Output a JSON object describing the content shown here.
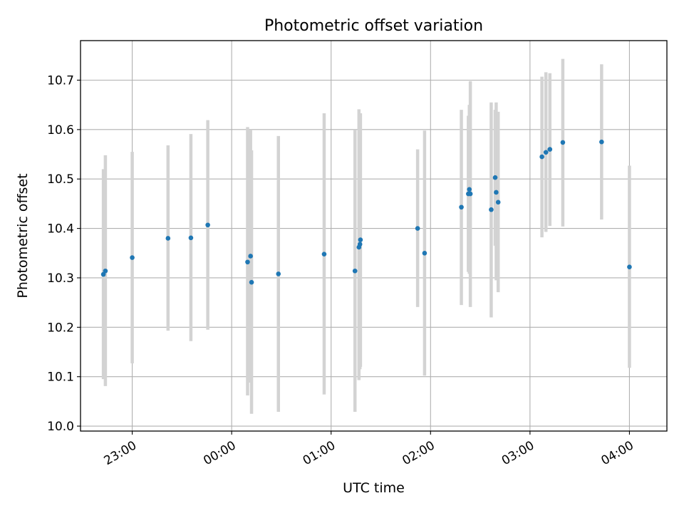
{
  "chart_data": {
    "type": "scatter",
    "title": "Photometric offset variation",
    "xlabel": "UTC time",
    "ylabel": "Photometric offset",
    "x_tick_labels": [
      "23:00",
      "00:00",
      "01:00",
      "02:00",
      "03:00",
      "04:00"
    ],
    "y_tick_labels": [
      "10.0",
      "10.1",
      "10.2",
      "10.3",
      "10.4",
      "10.5",
      "10.6",
      "10.7"
    ],
    "x_ticks_min": [
      1380,
      1440,
      1500,
      1560,
      1620,
      1680
    ],
    "y_ticks": [
      10.0,
      10.1,
      10.2,
      10.3,
      10.4,
      10.5,
      10.6,
      10.7
    ],
    "xlim_min": [
      1348.8,
      1702.6
    ],
    "ylim": [
      9.99,
      10.78
    ],
    "grid": true,
    "point_color": "#1f77b4",
    "errorbar_color": "#d3d3d3",
    "points": [
      {
        "t_min": 1362.6,
        "y": 10.307,
        "lo": 10.095,
        "hi": 10.52
      },
      {
        "t_min": 1363.8,
        "y": 10.314,
        "lo": 10.081,
        "hi": 10.548
      },
      {
        "t_min": 1380.0,
        "y": 10.341,
        "lo": 10.127,
        "hi": 10.555
      },
      {
        "t_min": 1401.6,
        "y": 10.38,
        "lo": 10.193,
        "hi": 10.568
      },
      {
        "t_min": 1415.4,
        "y": 10.381,
        "lo": 10.172,
        "hi": 10.591
      },
      {
        "t_min": 1425.6,
        "y": 10.407,
        "lo": 10.195,
        "hi": 10.619
      },
      {
        "t_min": 1449.6,
        "y": 10.332,
        "lo": 10.062,
        "hi": 10.605
      },
      {
        "t_min": 1451.4,
        "y": 10.344,
        "lo": 10.088,
        "hi": 10.6
      },
      {
        "t_min": 1452.0,
        "y": 10.291,
        "lo": 10.025,
        "hi": 10.558
      },
      {
        "t_min": 1468.2,
        "y": 10.308,
        "lo": 10.029,
        "hi": 10.587
      },
      {
        "t_min": 1495.8,
        "y": 10.348,
        "lo": 10.064,
        "hi": 10.633
      },
      {
        "t_min": 1514.4,
        "y": 10.314,
        "lo": 10.029,
        "hi": 10.6
      },
      {
        "t_min": 1516.8,
        "y": 10.362,
        "lo": 10.093,
        "hi": 10.641
      },
      {
        "t_min": 1517.4,
        "y": 10.368,
        "lo": 10.115,
        "hi": 10.625
      },
      {
        "t_min": 1517.7,
        "y": 10.377,
        "lo": 10.12,
        "hi": 10.633
      },
      {
        "t_min": 1552.2,
        "y": 10.4,
        "lo": 10.241,
        "hi": 10.56
      },
      {
        "t_min": 1556.4,
        "y": 10.35,
        "lo": 10.102,
        "hi": 10.598
      },
      {
        "t_min": 1578.6,
        "y": 10.443,
        "lo": 10.245,
        "hi": 10.64
      },
      {
        "t_min": 1582.8,
        "y": 10.47,
        "lo": 10.312,
        "hi": 10.628
      },
      {
        "t_min": 1583.4,
        "y": 10.479,
        "lo": 10.308,
        "hi": 10.65
      },
      {
        "t_min": 1584.0,
        "y": 10.47,
        "lo": 10.241,
        "hi": 10.698
      },
      {
        "t_min": 1596.6,
        "y": 10.438,
        "lo": 10.22,
        "hi": 10.655
      },
      {
        "t_min": 1599.0,
        "y": 10.503,
        "lo": 10.365,
        "hi": 10.64
      },
      {
        "t_min": 1599.6,
        "y": 10.473,
        "lo": 10.295,
        "hi": 10.655
      },
      {
        "t_min": 1600.8,
        "y": 10.453,
        "lo": 10.271,
        "hi": 10.636
      },
      {
        "t_min": 1627.2,
        "y": 10.545,
        "lo": 10.382,
        "hi": 10.707
      },
      {
        "t_min": 1629.6,
        "y": 10.554,
        "lo": 10.393,
        "hi": 10.716
      },
      {
        "t_min": 1632.0,
        "y": 10.56,
        "lo": 10.405,
        "hi": 10.714
      },
      {
        "t_min": 1639.8,
        "y": 10.574,
        "lo": 10.404,
        "hi": 10.743
      },
      {
        "t_min": 1663.2,
        "y": 10.575,
        "lo": 10.418,
        "hi": 10.732
      },
      {
        "t_min": 1680.0,
        "y": 10.322,
        "lo": 10.118,
        "hi": 10.527
      }
    ]
  }
}
